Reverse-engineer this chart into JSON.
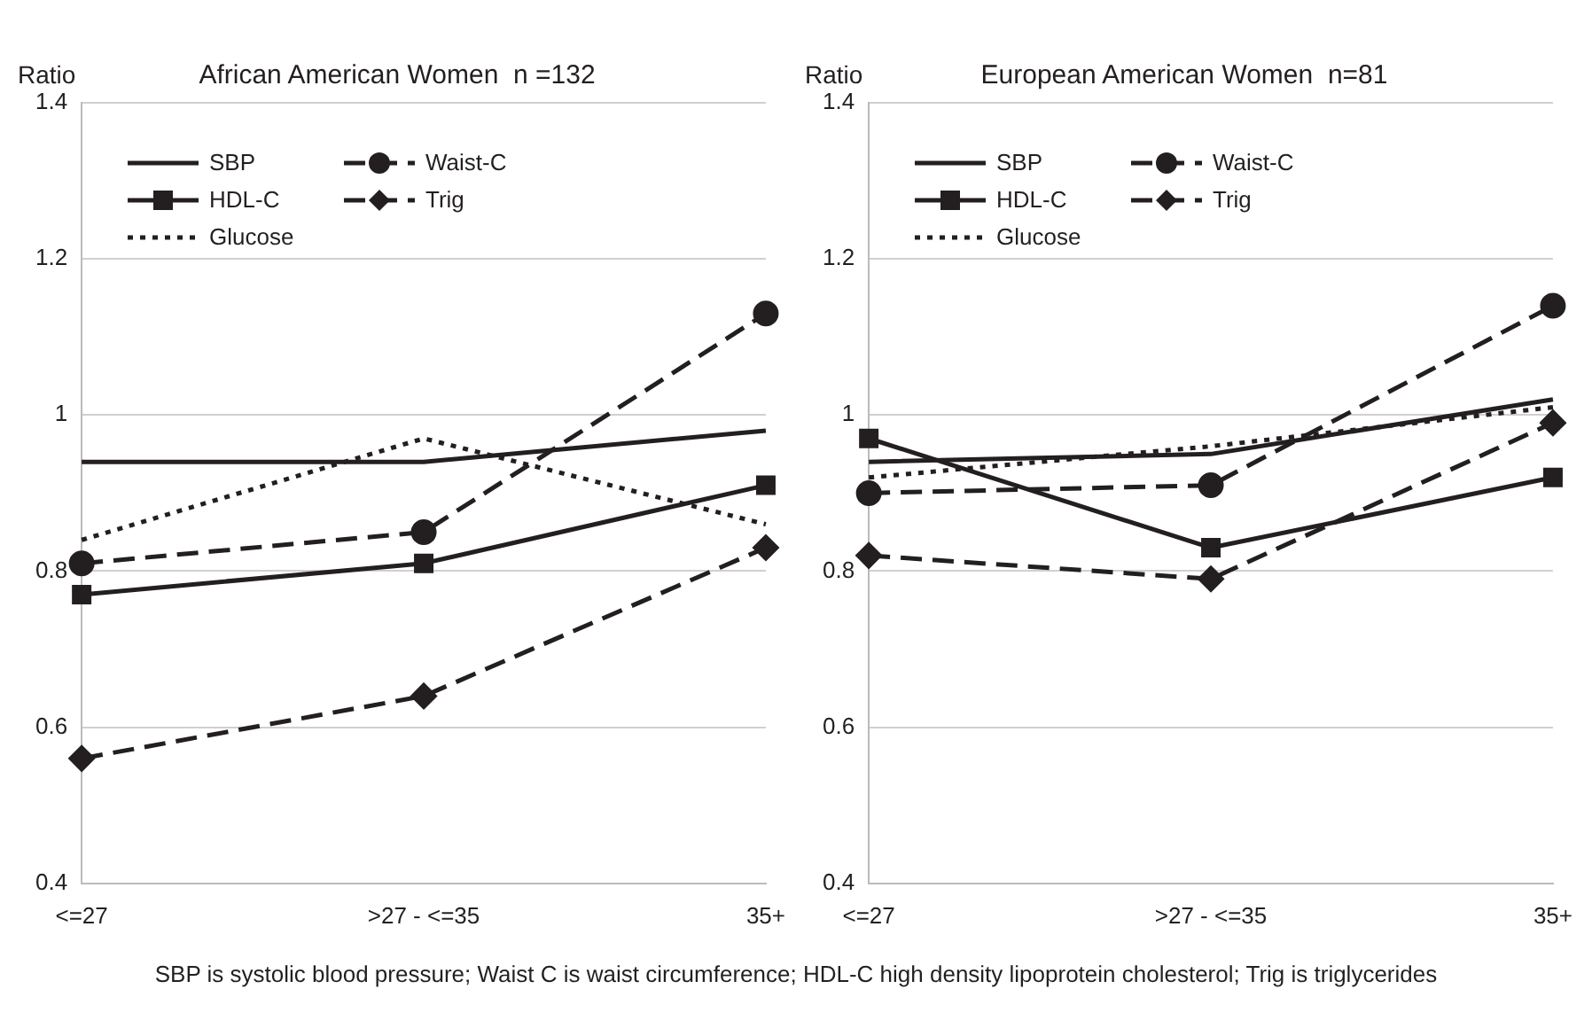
{
  "chart_data": [
    {
      "type": "line",
      "title": "African American Women  n =132",
      "ylabel": "Ratio",
      "categories": [
        "<=27",
        ">27 - <=35",
        "35+"
      ],
      "ylim": [
        0.4,
        1.4
      ],
      "yticks": [
        {
          "value": 0.4,
          "label": "0.4"
        },
        {
          "value": 0.6,
          "label": "0.6"
        },
        {
          "value": 0.8,
          "label": "0.8"
        },
        1,
        {
          "value": 1.2,
          "label": "1.2"
        },
        {
          "value": 1.4,
          "label": "1.4"
        }
      ],
      "grid": "y",
      "legend": "top",
      "series": [
        {
          "name": "SBP",
          "color": "#231f20",
          "line_style": "solid",
          "marker": "none",
          "values": [
            0.94,
            0.94,
            0.98
          ]
        },
        {
          "name": "Waist-C",
          "color": "#231f20",
          "line_style": "dashed",
          "marker": "circle",
          "values": [
            0.81,
            0.85,
            1.13
          ]
        },
        {
          "name": "HDL-C",
          "color": "#231f20",
          "line_style": "solid",
          "marker": "square",
          "values": [
            0.77,
            0.81,
            0.91
          ]
        },
        {
          "name": "Trig",
          "color": "#231f20",
          "line_style": "dashed",
          "marker": "diamond",
          "values": [
            0.56,
            0.64,
            0.83
          ]
        },
        {
          "name": "Glucose",
          "color": "#231f20",
          "line_style": "dotted",
          "marker": "none",
          "values": [
            0.84,
            0.97,
            0.86
          ]
        }
      ]
    },
    {
      "type": "line",
      "title": "European American Women  n=81",
      "ylabel": "Ratio",
      "categories": [
        "<=27",
        ">27 - <=35",
        "35+"
      ],
      "ylim": [
        0.4,
        1.4
      ],
      "yticks": [
        {
          "value": 0.4,
          "label": "0.4"
        },
        {
          "value": 0.6,
          "label": "0.6"
        },
        {
          "value": 0.8,
          "label": "0.8"
        },
        1,
        {
          "value": 1.2,
          "label": "1.2"
        },
        {
          "value": 1.4,
          "label": "1.4"
        }
      ],
      "grid": "y",
      "legend": "top",
      "annotations": [
        "SBP is systolic blood pressure;  Waist C is waist circumference; HDL-C high density lipoprotein cholesterol; Trig is triglycerides"
      ],
      "series": [
        {
          "name": "SBP",
          "color": "#231f20",
          "line_style": "solid",
          "marker": "none",
          "values": [
            0.94,
            0.95,
            1.02
          ]
        },
        {
          "name": "Waist-C",
          "color": "#231f20",
          "line_style": "dashed",
          "marker": "circle",
          "values": [
            0.9,
            0.91,
            1.14
          ]
        },
        {
          "name": "HDL-C",
          "color": "#231f20",
          "line_style": "solid",
          "marker": "square",
          "values": [
            0.97,
            0.83,
            0.92
          ]
        },
        {
          "name": "Trig",
          "color": "#231f20",
          "line_style": "dashed",
          "marker": "diamond",
          "values": [
            0.82,
            0.79,
            0.99
          ]
        },
        {
          "name": "Glucose",
          "color": "#231f20",
          "line_style": "dotted",
          "marker": "none",
          "values": [
            0.92,
            0.96,
            1.01
          ]
        }
      ]
    }
  ]
}
